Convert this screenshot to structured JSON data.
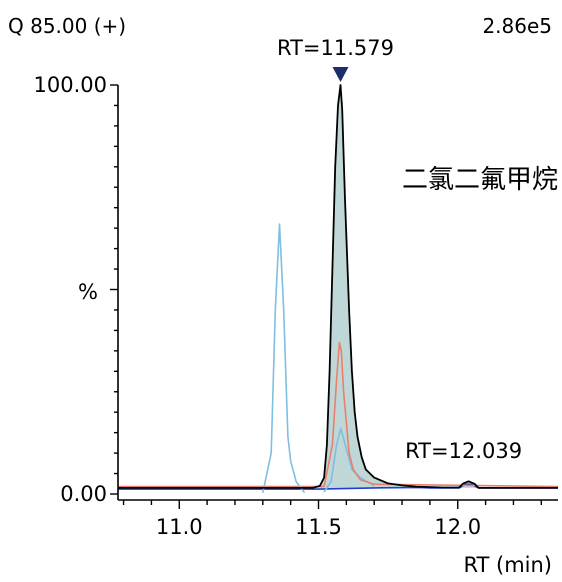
{
  "chart_data": {
    "type": "line",
    "header_left": "Q 85.00 (+)",
    "header_right": "2.86e5",
    "compound": "二氯二氟甲烷",
    "xlabel": "RT (min)",
    "ylabel": "%",
    "xlim": [
      10.78,
      12.36
    ],
    "ylim": [
      0,
      100
    ],
    "x_ticks": [
      "11.0",
      "11.5",
      "12.0"
    ],
    "y_ticks": [
      "0.00",
      "100.00"
    ],
    "grid": false,
    "peak_labels": [
      {
        "text": "RT=11.579",
        "x": 11.579,
        "y": 100,
        "marker": true
      },
      {
        "text": "RT=12.039",
        "x": 12.039,
        "y": 5
      }
    ],
    "series": [
      {
        "color": "#000000",
        "fill": "#bfd7d6",
        "x": [
          10.78,
          11.48,
          11.505,
          11.52,
          11.53,
          11.54,
          11.55,
          11.56,
          11.57,
          11.579,
          11.585,
          11.595,
          11.61,
          11.62,
          11.63,
          11.64,
          11.655,
          11.67,
          11.7,
          11.75,
          11.8,
          11.85,
          11.95,
          12.005,
          12.02,
          12.039,
          12.06,
          12.075,
          12.36
        ],
        "y": [
          1.5,
          1.5,
          2.0,
          4,
          12,
          30,
          55,
          80,
          95,
          100,
          94,
          72,
          45,
          30,
          20,
          14,
          9,
          6,
          4,
          2.6,
          2.1,
          1.8,
          1.6,
          1.6,
          2.6,
          3.1,
          2.5,
          1.5,
          1.5
        ]
      },
      {
        "color": "#7fbfdf",
        "x": [
          11.3,
          11.33,
          11.345,
          11.36,
          11.375,
          11.39,
          11.4,
          11.42,
          11.45
        ],
        "y": [
          0.3,
          10,
          45,
          66,
          45,
          14,
          8,
          3,
          0.3
        ]
      },
      {
        "color": "#e8806e",
        "x": [
          10.78,
          11.52,
          11.55,
          11.565,
          11.575,
          11.582,
          11.59,
          11.61,
          11.625,
          11.65,
          11.7,
          12.36
        ],
        "y": [
          1.8,
          1.8,
          12,
          28,
          37,
          35,
          25,
          10,
          6,
          3.5,
          2.4,
          1.8
        ]
      },
      {
        "color": "#7fbfdf",
        "x": [
          11.52,
          11.545,
          11.565,
          11.58,
          11.6,
          11.62,
          11.65,
          11.7
        ],
        "y": [
          0.5,
          3,
          12,
          16,
          11,
          6,
          4,
          2
        ]
      },
      {
        "color": "#1f3fd0",
        "x": [
          10.78,
          11.5,
          11.7,
          11.86,
          11.9,
          12.005,
          12.025,
          12.039,
          12.05,
          12.075,
          12.36
        ],
        "y": [
          1.2,
          1.2,
          1.5,
          1.6,
          1.5,
          1.5,
          2.3,
          2.4,
          2.3,
          1.5,
          1.5
        ]
      }
    ]
  }
}
